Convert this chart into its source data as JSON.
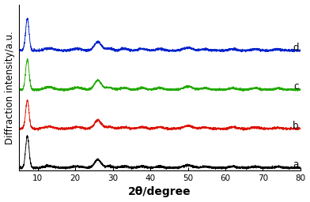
{
  "x_min": 5,
  "x_max": 80,
  "xlabel": "2θ/degree",
  "ylabel": "Diffraction intensity/a.u.",
  "labels": [
    "a",
    "b",
    "c",
    "d"
  ],
  "colors": [
    "#000000",
    "#dd1100",
    "#22aa00",
    "#0022cc"
  ],
  "offsets": [
    0.0,
    0.22,
    0.44,
    0.66
  ],
  "peak_data": {
    "a": {
      "positions": [
        7.2,
        13.0,
        20.5,
        26.0,
        29.0,
        33.0,
        37.8,
        42.5,
        50.0,
        54.5,
        62.0,
        68.0,
        74.0
      ],
      "heights": [
        0.18,
        0.01,
        0.008,
        0.045,
        0.008,
        0.008,
        0.008,
        0.008,
        0.014,
        0.007,
        0.007,
        0.007,
        0.006
      ],
      "widths": [
        0.45,
        1.2,
        1.2,
        0.9,
        1.0,
        1.0,
        1.0,
        1.0,
        1.2,
        1.0,
        1.0,
        1.0,
        1.0
      ]
    },
    "b": {
      "positions": [
        7.2,
        13.0,
        20.5,
        26.0,
        29.0,
        33.0,
        37.8,
        42.5,
        50.0,
        54.5,
        62.0,
        68.0,
        74.0
      ],
      "heights": [
        0.16,
        0.012,
        0.01,
        0.048,
        0.01,
        0.009,
        0.009,
        0.009,
        0.016,
        0.008,
        0.008,
        0.008,
        0.006
      ],
      "widths": [
        0.45,
        1.2,
        1.2,
        0.9,
        1.0,
        1.0,
        1.0,
        1.0,
        1.2,
        1.0,
        1.0,
        1.0,
        1.0
      ]
    },
    "c": {
      "positions": [
        7.2,
        13.0,
        20.5,
        26.0,
        29.0,
        33.0,
        37.8,
        42.5,
        50.0,
        54.5,
        62.0,
        68.0,
        74.0
      ],
      "heights": [
        0.17,
        0.015,
        0.012,
        0.052,
        0.012,
        0.01,
        0.01,
        0.01,
        0.018,
        0.009,
        0.009,
        0.009,
        0.007
      ],
      "widths": [
        0.45,
        1.2,
        1.2,
        0.9,
        1.0,
        1.0,
        1.0,
        1.0,
        1.2,
        1.0,
        1.0,
        1.0,
        1.0
      ]
    },
    "d": {
      "positions": [
        7.2,
        13.0,
        20.5,
        26.0,
        29.0,
        33.0,
        37.8,
        42.5,
        50.0,
        54.5,
        62.0,
        68.0,
        74.0
      ],
      "heights": [
        0.18,
        0.013,
        0.011,
        0.05,
        0.011,
        0.01,
        0.01,
        0.009,
        0.016,
        0.008,
        0.008,
        0.008,
        0.007
      ],
      "widths": [
        0.45,
        1.2,
        1.2,
        0.9,
        1.0,
        1.0,
        1.0,
        1.0,
        1.2,
        1.0,
        1.0,
        1.0,
        1.0
      ]
    }
  },
  "noise_level": 0.003,
  "xticks": [
    10,
    20,
    30,
    40,
    50,
    60,
    70,
    80
  ],
  "tick_fontsize": 7.5,
  "label_fontsize": 8.5,
  "xlabel_fontsize": 10,
  "annotation_fontsize": 8.5,
  "linewidth": 0.65,
  "background_color": "#ffffff"
}
